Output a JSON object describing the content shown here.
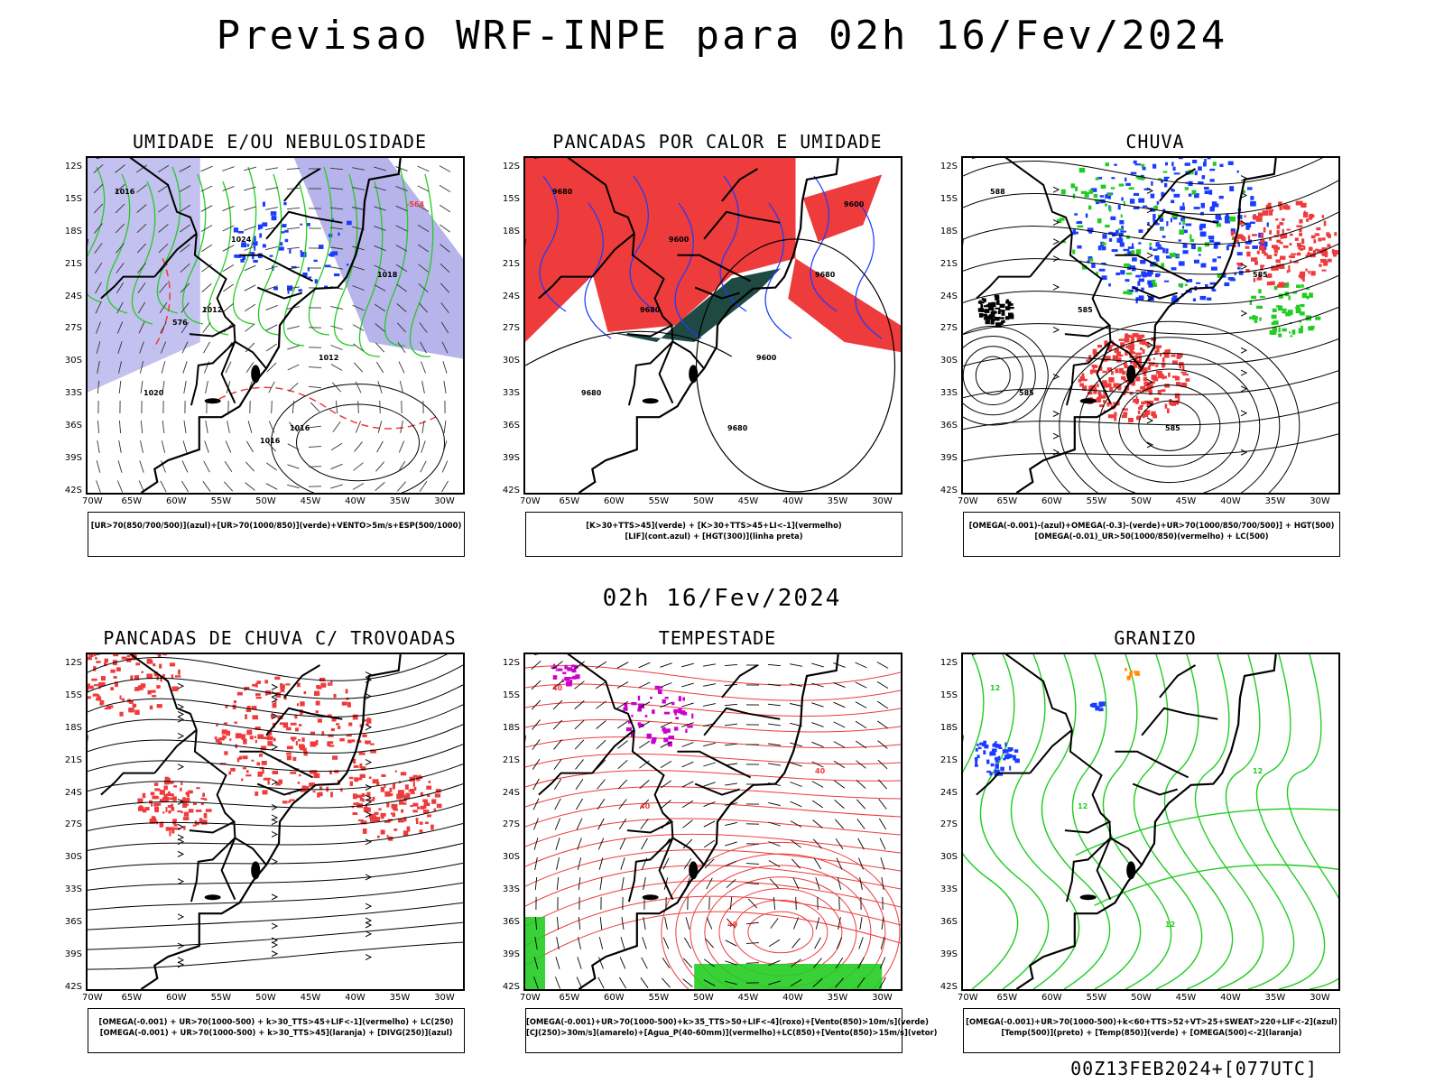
{
  "page": {
    "title": "Previsao WRF-INPE  para 02h 16/Fev/2024",
    "mid_title": "02h 16/Fev/2024",
    "footer": "00Z13FEB2024+[077UTC]"
  },
  "axes": {
    "lat_labels": [
      "12S",
      "15S",
      "18S",
      "21S",
      "24S",
      "27S",
      "30S",
      "33S",
      "36S",
      "39S",
      "42S"
    ],
    "lon_labels": [
      "70W",
      "65W",
      "60W",
      "55W",
      "50W",
      "45W",
      "40W",
      "35W",
      "30W"
    ]
  },
  "colors": {
    "purple_shade": "#aaa6e8",
    "blue": "#1a3cff",
    "green": "#22cc22",
    "red": "#ee3b3b",
    "dark_teal": "#1f4a44",
    "orange": "#ff8c00",
    "magenta": "#cc00cc",
    "black": "#000000"
  },
  "panels": [
    {
      "title": "UMIDADE E/OU NEBULOSIDADE",
      "legend": [
        "[UR>70(850/700/500)](azul)+[UR>70(1000/850)](verde)+VENTO>5m/s+ESP(500/1000)"
      ],
      "labels": [
        "1016",
        "1012",
        "1016",
        "1018",
        "1020",
        "1024",
        "1012",
        "-564",
        "576",
        "1016"
      ]
    },
    {
      "title": "PANCADAS POR CALOR E UMIDADE",
      "legend": [
        "[K>30+TTS>45](verde) + [K>30+TTS>45+LI<-1](vermelho)",
        "[LIF](cont.azul) + [HGT(300)](linha preta)"
      ],
      "labels": [
        "9680",
        "9680",
        "9680",
        "9680",
        "9680",
        "9600",
        "9600",
        "9600"
      ]
    },
    {
      "title": "CHUVA",
      "legend": [
        "[OMEGA(-0.001)-(azul)+OMEGA(-0.3)-(verde)+UR>70(1000/850/700/500)] + HGT(500)",
        "[OMEGA(-0.01)_UR>50(1000/850)(vermelho) + LC(500)"
      ],
      "labels": [
        "588",
        "585",
        "585",
        "585",
        "585"
      ]
    },
    {
      "title": "PANCADAS DE CHUVA C/ TROVOADAS",
      "legend": [
        "[OMEGA(-0.001) + UR>70(1000-500) + k>30_TTS>45+LIF<-1](vermelho) + LC(250)",
        "[OMEGA(-0.001) + UR>70(1000-500) + k>30_TTS>45](laranja) + [DIVG(250)](azul)"
      ],
      "labels": []
    },
    {
      "title": "TEMPESTADE",
      "legend": [
        "[OMEGA(-0.001)+UR>70(1000-500)+k>35_TTS>50+LIF<-4](roxo)+[Vento(850)>10m/s](verde)",
        "[CJ(250)>30m/s](amarelo)+[Agua_P(40-60mm)](vermelho)+LC(850)+[Vento(850)>15m/s](vetor)"
      ],
      "labels": [
        "40",
        "40",
        "40",
        "40"
      ]
    },
    {
      "title": "GRANIZO",
      "legend": [
        "[OMEGA(-0.001)+UR>70(1000-500)+k<60+TTS>52+VT>25+SWEAT>220+LIF<-2](azul)",
        "[Temp(500)](preto) + [Temp(850)](verde) + [OMEGA(500)<-2](laranja)"
      ],
      "labels": [
        "12",
        "12",
        "12",
        "12"
      ]
    }
  ]
}
